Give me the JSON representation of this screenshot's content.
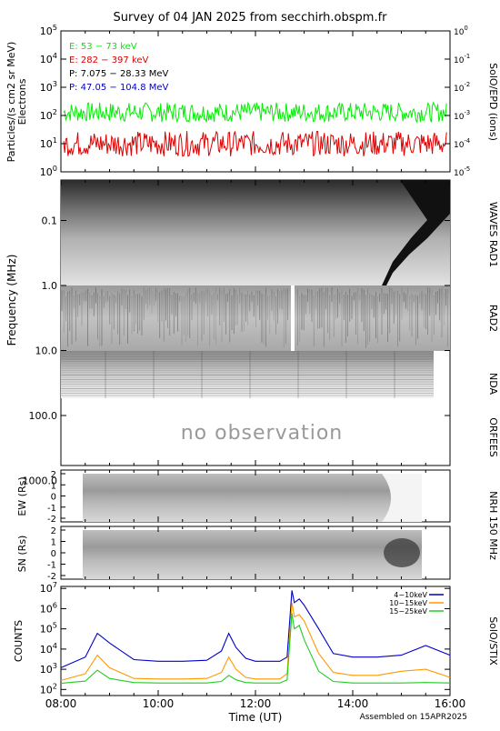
{
  "title": "Survey of 04 JAN 2025 from secchirh.obspm.fr",
  "footer": "Assembled on 15APR2025",
  "xlabel": "Time (UT)",
  "xticks": [
    "08:00",
    "10:00",
    "12:00",
    "14:00",
    "16:00"
  ],
  "colors": {
    "green": "#00ee00",
    "red": "#dd0000",
    "black": "#000000",
    "blue": "#0000c8",
    "orange": "#ff9900",
    "stix_green": "#22cc22"
  },
  "epd": {
    "ylabel": "Particles/(s cm2 sr MeV)",
    "ylabel2": "Electrons",
    "right_label": "SolO/EPD (ions)",
    "left_ticks": [
      "10^0",
      "10^1",
      "10^2",
      "10^3",
      "10^4",
      "10^5"
    ],
    "right_ticks": [
      "10^-5",
      "10^-4",
      "10^-3",
      "10^-2",
      "10^-1",
      "10^0"
    ],
    "legend": [
      {
        "text": "E: 53 − 73 keV",
        "color": "#00ee00"
      },
      {
        "text": "E: 282 − 397 keV",
        "color": "#dd0000"
      },
      {
        "text": "P: 7.075 − 28.33 MeV",
        "color": "#000000"
      },
      {
        "text": "P: 47.05 − 104.8 MeV",
        "color": "#0000c8"
      }
    ]
  },
  "spectrogram": {
    "ylabel": "Frequency (MHz)",
    "yticks": [
      "0.1",
      "1.0",
      "10.0",
      "100.0",
      "1000.0"
    ],
    "instrument_labels": [
      "WAVES RAD1",
      "RAD2",
      "NDA",
      "ORFEES"
    ],
    "no_observation": "no observation"
  },
  "nrh": {
    "ew_label": "EW (Rs)",
    "sn_label": "SN (Rs)",
    "yticks": [
      "2",
      "1",
      "0",
      "-1",
      "-2"
    ],
    "right_label": "NRH 150 MHz"
  },
  "stix": {
    "ylabel": "COUNTS",
    "right_label": "SolO/STIX",
    "yticks": [
      "10^2",
      "10^3",
      "10^4",
      "10^5",
      "10^6",
      "10^7"
    ],
    "legend": [
      {
        "text": "4−10keV",
        "color": "#0000c8"
      },
      {
        "text": "10−15keV",
        "color": "#ff9900"
      },
      {
        "text": "15−25keV",
        "color": "#22cc22"
      }
    ]
  },
  "chart_data": [
    {
      "type": "line",
      "name": "SolO/EPD",
      "xlim": [
        "08:00",
        "16:00"
      ],
      "ylim": [
        1,
        100000
      ],
      "yscale": "log",
      "series": [
        {
          "name": "E: 53 − 73 keV",
          "baseline": 130,
          "color": "#00ee00"
        },
        {
          "name": "E: 282 − 397 keV",
          "baseline": 10,
          "color": "#dd0000"
        }
      ]
    },
    {
      "type": "heatmap",
      "name": "Radio spectrogram",
      "ylim_mhz": [
        0.02,
        1500
      ],
      "yscale": "log",
      "xlim": [
        "08:00",
        "16:00"
      ]
    },
    {
      "type": "line",
      "name": "SolO/STIX",
      "xlim": [
        "08:00",
        "16:00"
      ],
      "ylim": [
        100,
        10000000
      ],
      "yscale": "log",
      "series": [
        {
          "name": "4−10keV",
          "x": [
            8.0,
            8.5,
            8.75,
            9.0,
            9.5,
            10.0,
            10.5,
            11.0,
            11.3,
            11.45,
            11.6,
            11.8,
            12.0,
            12.5,
            12.65,
            12.75,
            12.8,
            12.9,
            13.0,
            13.3,
            13.6,
            14.0,
            14.5,
            15.0,
            15.5,
            16.0
          ],
          "y": [
            1200,
            4000,
            60000,
            20000,
            3000,
            2500,
            2500,
            2800,
            8000,
            60000,
            12000,
            3500,
            2500,
            2500,
            4000,
            8000000,
            2000000,
            3000000,
            1500000,
            100000,
            6000,
            4000,
            4000,
            5000,
            15000,
            5000
          ]
        },
        {
          "name": "10−15keV",
          "x": [
            8.0,
            8.5,
            8.75,
            9.0,
            9.5,
            10.0,
            10.5,
            11.0,
            11.3,
            11.45,
            11.6,
            11.8,
            12.0,
            12.5,
            12.65,
            12.75,
            12.8,
            12.9,
            13.0,
            13.3,
            13.6,
            14.0,
            14.5,
            15.0,
            15.5,
            16.0
          ],
          "y": [
            280,
            600,
            5000,
            1200,
            350,
            330,
            330,
            350,
            700,
            4000,
            1000,
            400,
            330,
            330,
            600,
            2000000,
            400000,
            500000,
            250000,
            6000,
            700,
            500,
            500,
            800,
            1000,
            400
          ]
        },
        {
          "name": "15−25keV",
          "x": [
            8.0,
            8.5,
            8.75,
            9.0,
            9.5,
            10.0,
            10.5,
            11.0,
            11.3,
            11.45,
            11.6,
            11.8,
            12.0,
            12.5,
            12.65,
            12.75,
            12.8,
            12.9,
            13.0,
            13.3,
            13.6,
            14.0,
            14.5,
            15.0,
            15.5,
            16.0
          ],
          "y": [
            200,
            260,
            900,
            350,
            220,
            210,
            210,
            210,
            250,
            500,
            300,
            220,
            210,
            210,
            300,
            600000,
            100000,
            150000,
            30000,
            800,
            250,
            210,
            210,
            210,
            220,
            210
          ]
        }
      ]
    }
  ]
}
